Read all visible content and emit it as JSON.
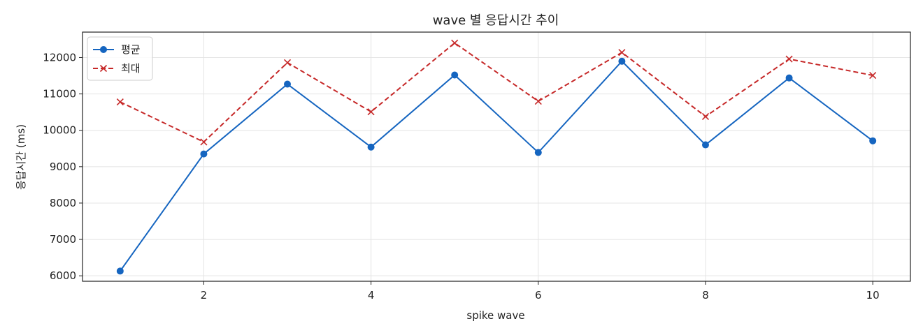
{
  "chart_data": {
    "type": "line",
    "title": "wave 별 응답시간 추이",
    "xlabel": "spike wave",
    "ylabel": "응답시간 (ms)",
    "x": [
      1,
      2,
      3,
      4,
      5,
      6,
      7,
      8,
      9,
      10
    ],
    "xlim": [
      0.55,
      10.45
    ],
    "ylim": [
      5850,
      12700
    ],
    "xticks": [
      2,
      4,
      6,
      8,
      10
    ],
    "yticks": [
      6000,
      7000,
      8000,
      9000,
      10000,
      11000,
      12000
    ],
    "grid": true,
    "legend_position": "top-left",
    "series": [
      {
        "name": "평균",
        "color": "#1565c0",
        "line_style": "solid",
        "marker": "circle",
        "values": [
          6130,
          9350,
          11270,
          9540,
          11520,
          9390,
          11900,
          9600,
          11440,
          9710
        ]
      },
      {
        "name": "최대",
        "color": "#c62828",
        "line_style": "dashed",
        "marker": "x",
        "values": [
          10780,
          9680,
          11860,
          10510,
          12400,
          10800,
          12140,
          10380,
          11960,
          11510
        ]
      }
    ]
  }
}
